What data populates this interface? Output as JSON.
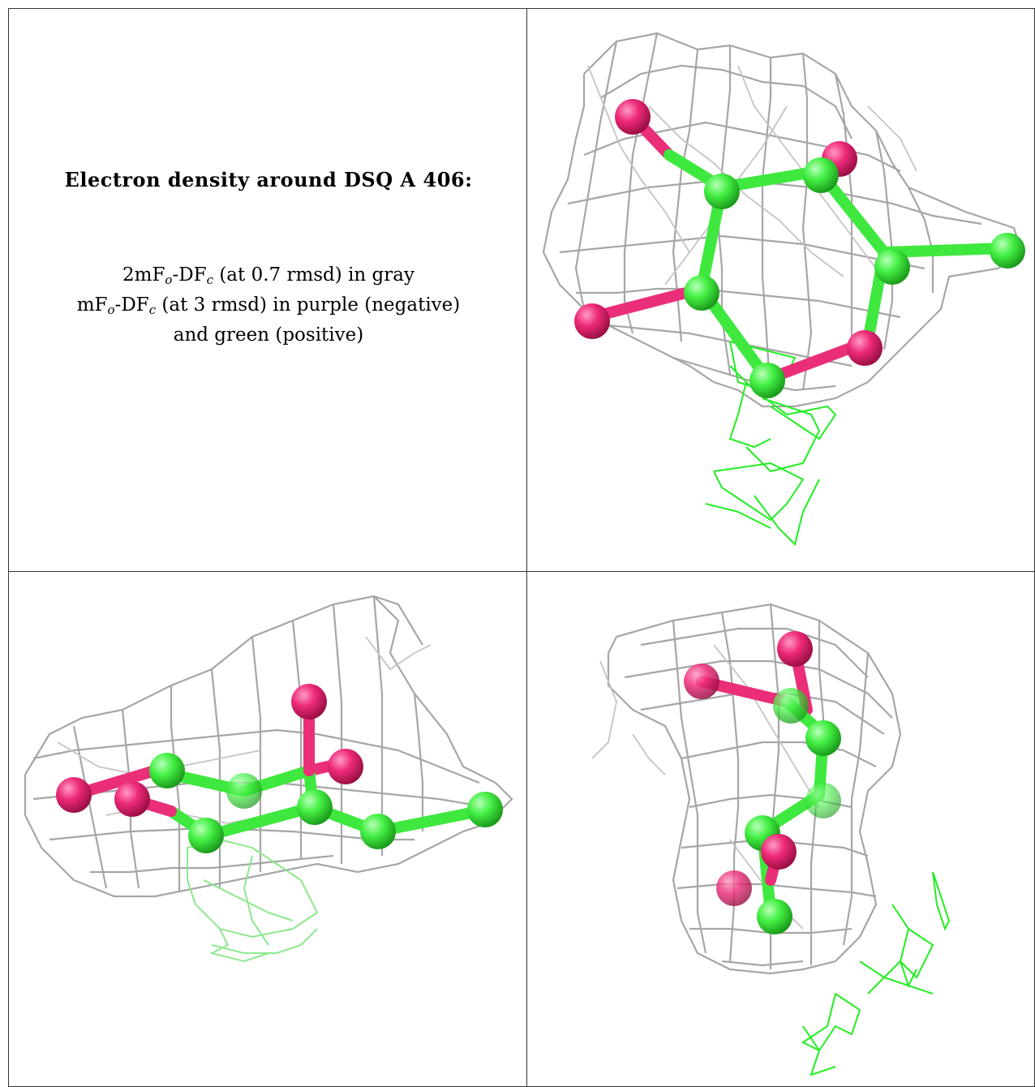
{
  "caption": {
    "title": "Electron density around DSQ A 406:",
    "line1_a": "2mF",
    "line1_sub1": "o",
    "line1_b": "-DF",
    "line1_sub2": "c",
    "line1_c": " (at 0.7 rmsd) in gray",
    "line2_a": "mF",
    "line2_sub1": "o",
    "line2_b": "-DF",
    "line2_sub2": "c",
    "line2_c": " (at 3 rmsd) in purple (negative)",
    "line3": "and green (positive)"
  },
  "colors": {
    "carbon": "#3ee83e",
    "oxygen": "#ea2e78",
    "gray_mesh": "#a6a6a6",
    "positive_mesh": "#22ee22"
  },
  "views": [
    {
      "name": "view-top"
    },
    {
      "name": "view-side"
    },
    {
      "name": "view-end"
    }
  ]
}
